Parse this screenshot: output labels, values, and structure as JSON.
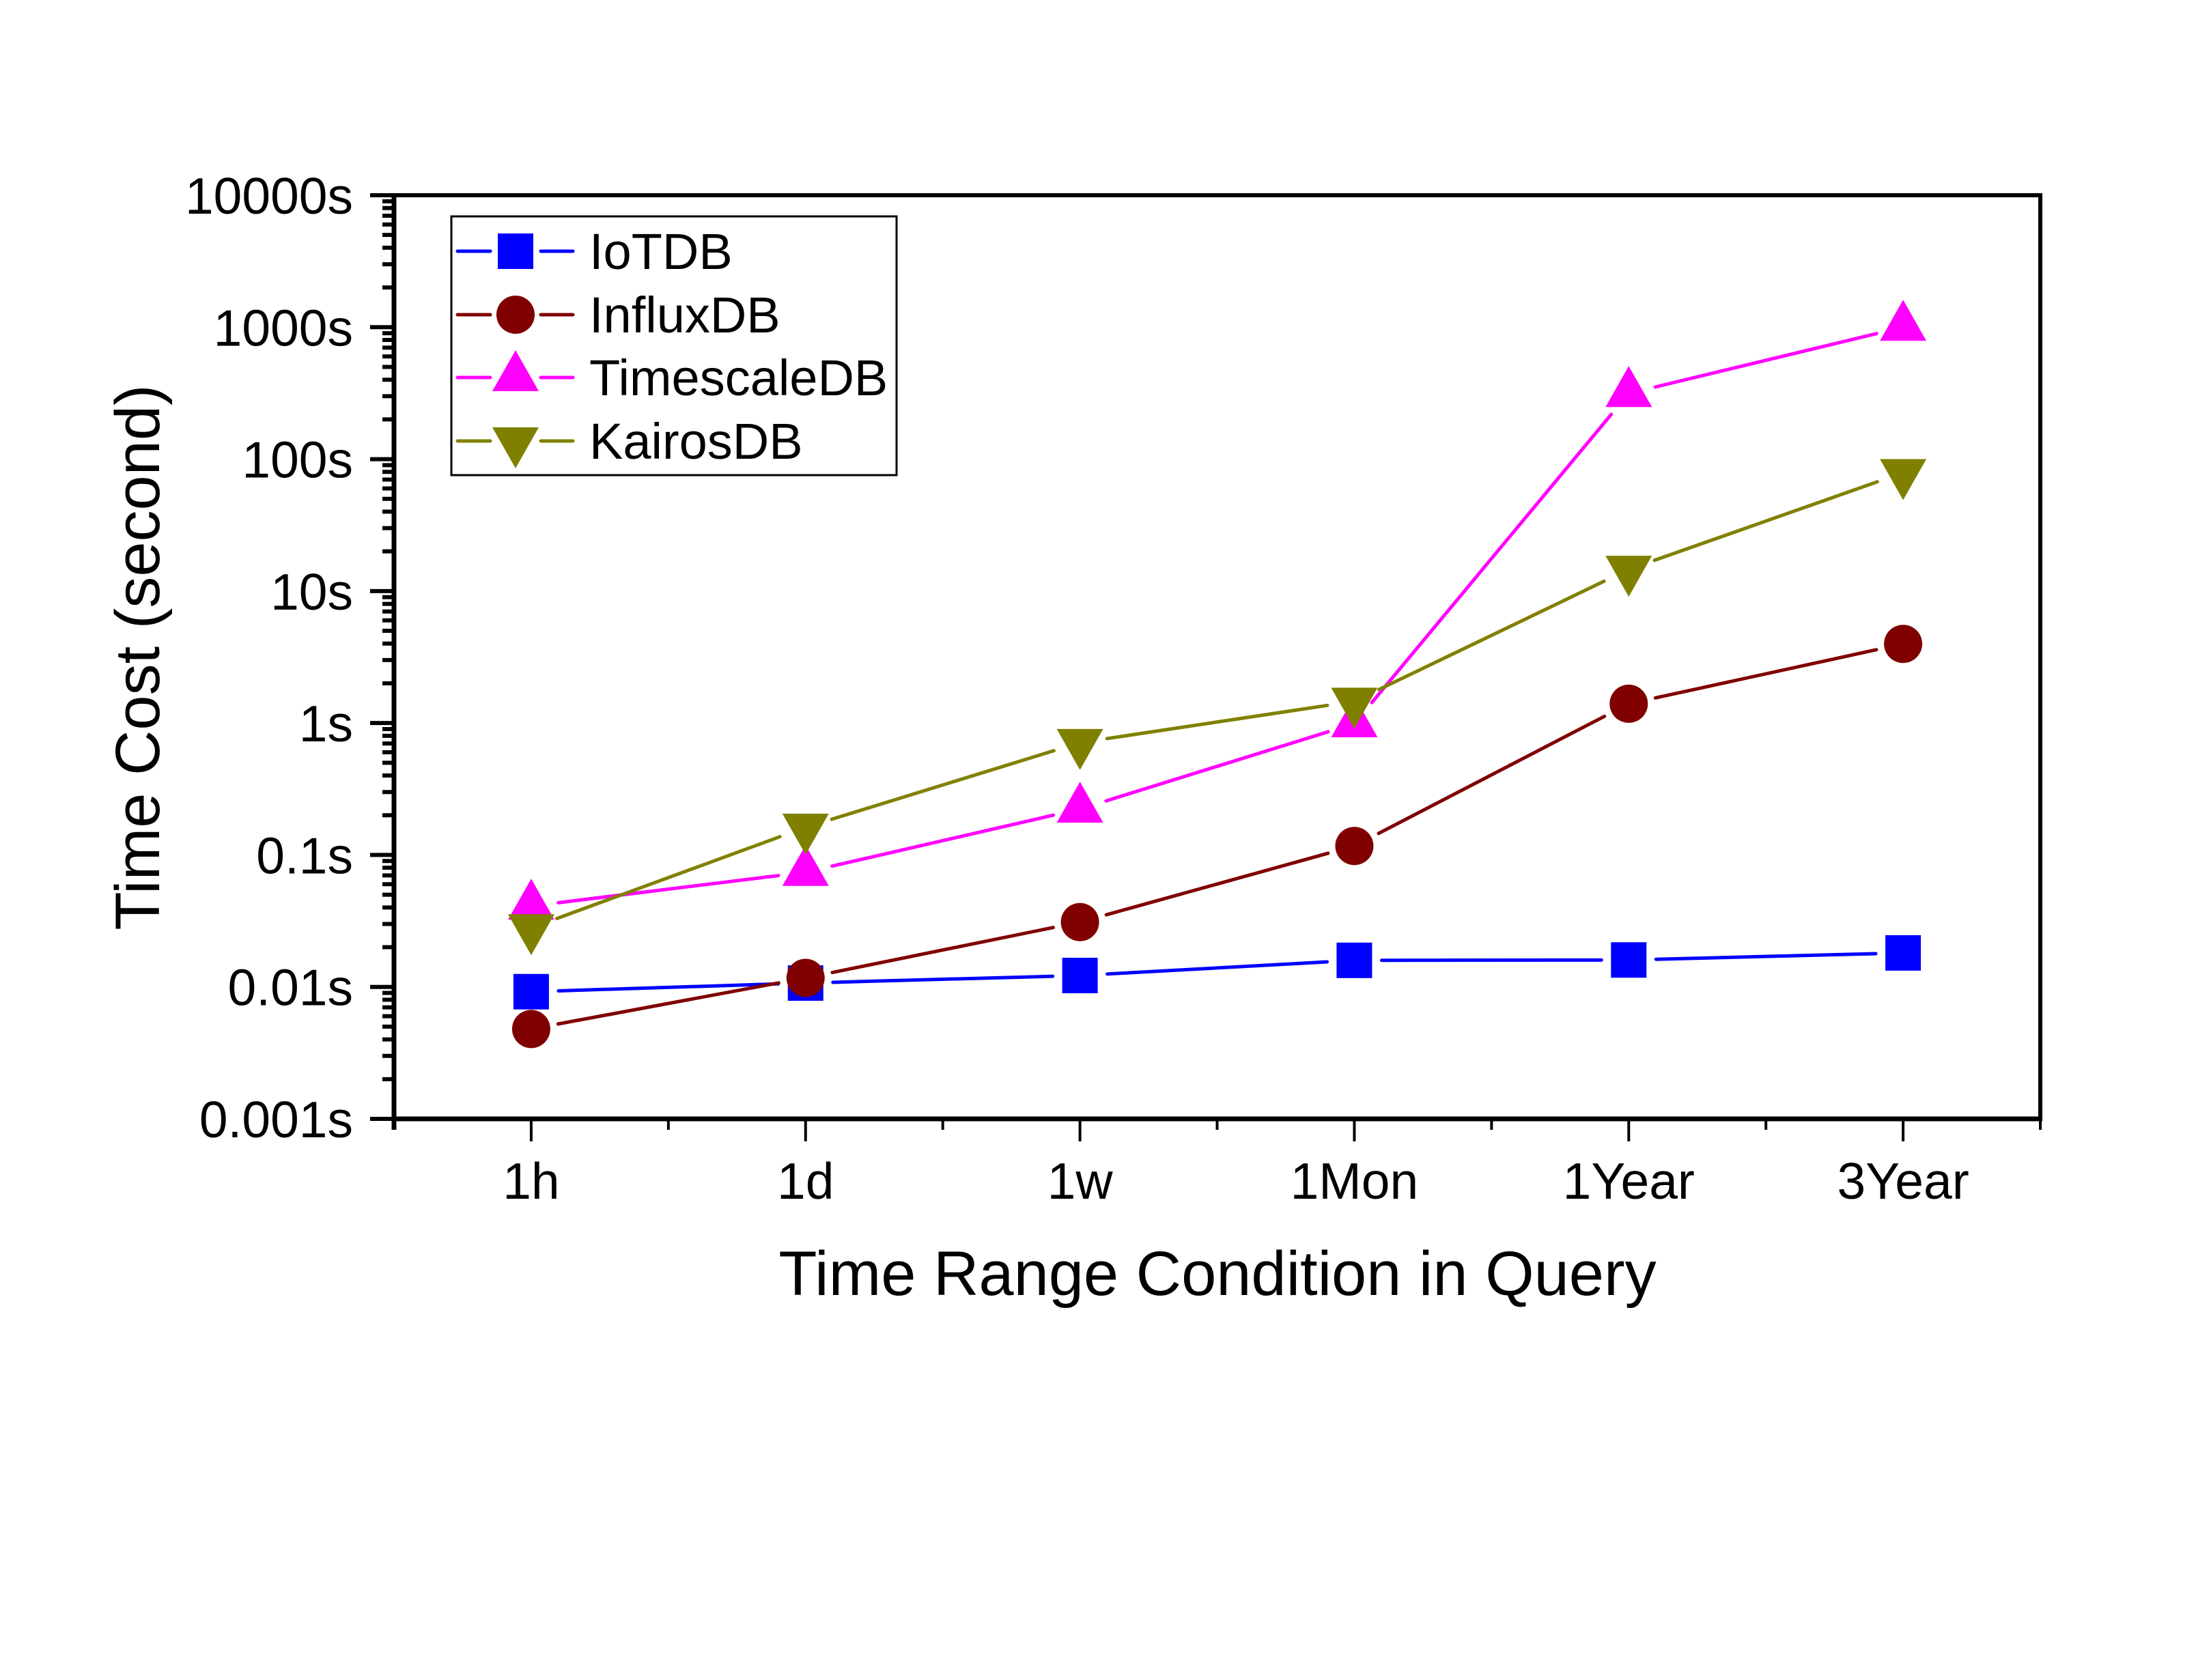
{
  "chart_data": {
    "type": "line",
    "title": "",
    "xlabel": "Time Range Condition in Query",
    "ylabel": "Time Cost (second)",
    "yscale": "log",
    "ylim": [
      0.001,
      10000
    ],
    "yticks": [
      {
        "value": 0.001,
        "label": "0.001s"
      },
      {
        "value": 0.01,
        "label": "0.01s"
      },
      {
        "value": 0.1,
        "label": "0.1s"
      },
      {
        "value": 1,
        "label": "1s"
      },
      {
        "value": 10,
        "label": "10s"
      },
      {
        "value": 100,
        "label": "100s"
      },
      {
        "value": 1000,
        "label": "1000s"
      },
      {
        "value": 10000,
        "label": "10000s"
      }
    ],
    "categories": [
      "1h",
      "1d",
      "1w",
      "1Mon",
      "1Year",
      "3Year"
    ],
    "grid": false,
    "legend_position": "top-left",
    "series": [
      {
        "name": "IoTDB",
        "color": "#0000FF",
        "marker": "square",
        "values": [
          0.0092,
          0.0107,
          0.0122,
          0.0159,
          0.016,
          0.0181
        ]
      },
      {
        "name": "InfluxDB",
        "color": "#800000",
        "marker": "circle",
        "values": [
          0.0048,
          0.0117,
          0.031,
          0.117,
          1.4,
          3.98
        ]
      },
      {
        "name": "TimescaleDB",
        "color": "#FF00FF",
        "marker": "triangle-up",
        "values": [
          0.041,
          0.074,
          0.223,
          0.99,
          315,
          1000
        ]
      },
      {
        "name": "KairosDB",
        "color": "#808000",
        "marker": "triangle-down",
        "values": [
          0.028,
          0.162,
          0.71,
          1.46,
          14.6,
          78.9
        ]
      }
    ]
  }
}
